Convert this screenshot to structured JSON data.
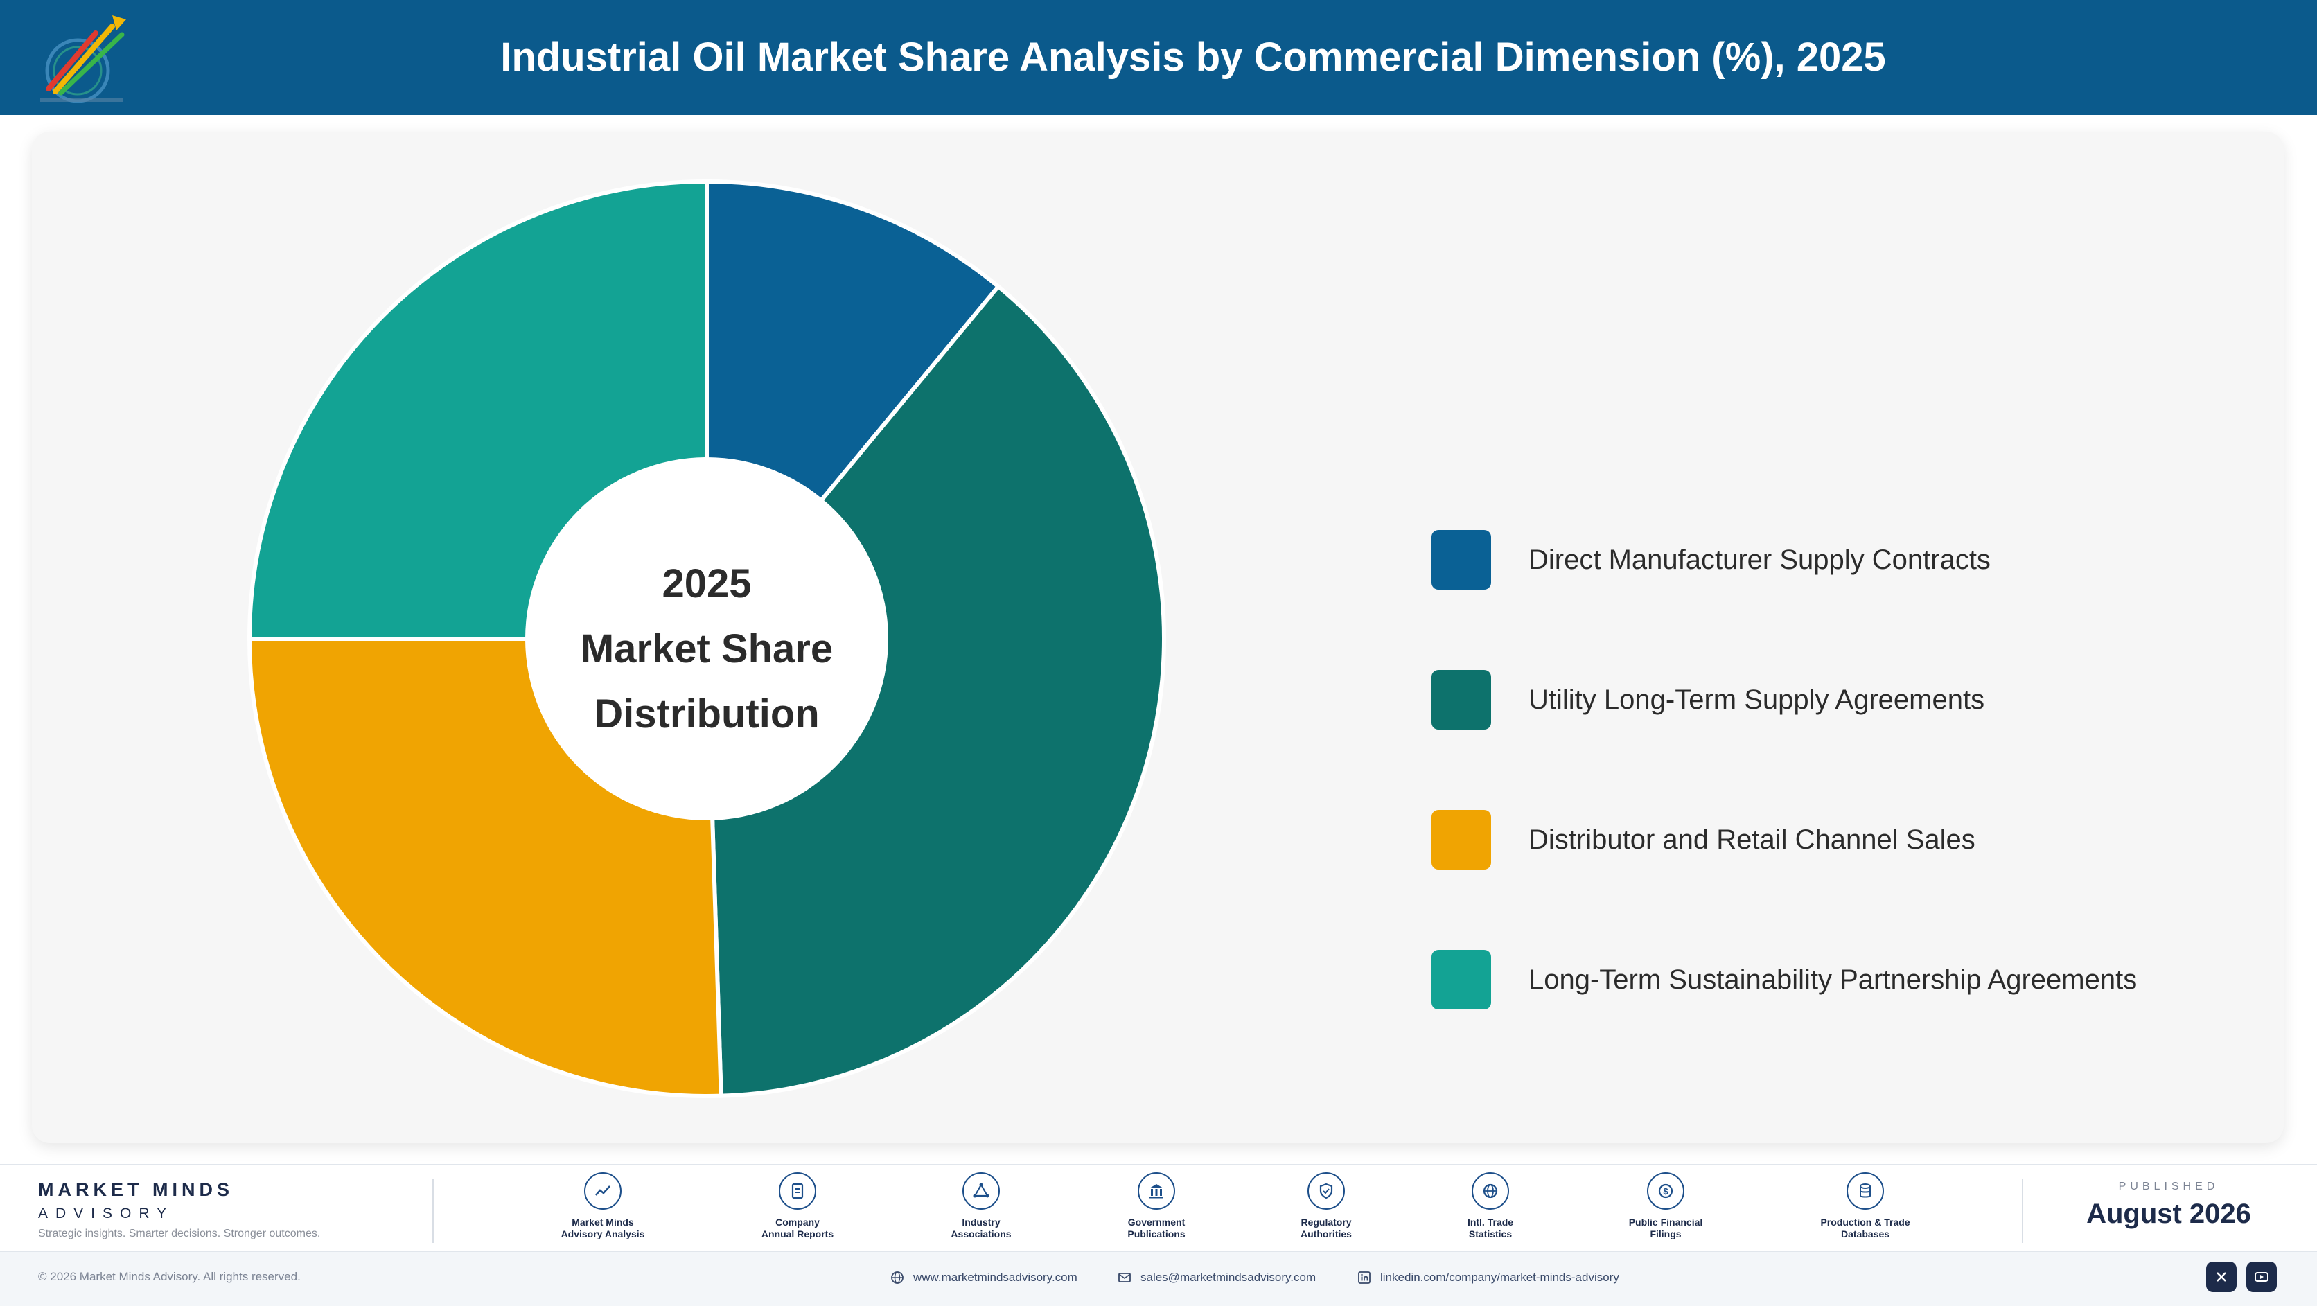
{
  "header": {
    "title": "Industrial Oil Market Share Analysis by Commercial Dimension (%), 2025"
  },
  "chart_data": {
    "type": "pie",
    "style": "donut",
    "center_label": [
      "2025",
      "Market Share",
      "Distribution"
    ],
    "legend_position": "right",
    "categories": [
      "Direct Manufacturer Supply Contracts",
      "Utility Long-Term Supply Agreements",
      "Distributor and Retail Channel Sales",
      "Long-Term Sustainability Partnership Agreements"
    ],
    "values": [
      11,
      38.5,
      25.5,
      25
    ],
    "colors": [
      "#0a6195",
      "#0d726c",
      "#f0a402",
      "#13a394"
    ]
  },
  "footer": {
    "brand_name": "MARKET MINDS",
    "brand_sub": "ADVISORY",
    "tagline": "Strategic insights. Smarter decisions. Stronger outcomes.",
    "sources": [
      {
        "icon": "trend-chart-icon",
        "label": [
          "Market Minds",
          "Advisory Analysis"
        ]
      },
      {
        "icon": "document-icon",
        "label": [
          "Company",
          "Annual Reports"
        ]
      },
      {
        "icon": "network-icon",
        "label": [
          "Industry",
          "Associations"
        ]
      },
      {
        "icon": "government-building-icon",
        "label": [
          "Government",
          "Publications"
        ]
      },
      {
        "icon": "shield-icon",
        "label": [
          "Regulatory",
          "Authorities"
        ]
      },
      {
        "icon": "globe-icon",
        "label": [
          "Intl. Trade",
          "Statistics"
        ]
      },
      {
        "icon": "coin-icon",
        "label": [
          "Public Financial",
          "Filings"
        ]
      },
      {
        "icon": "database-icon",
        "label": [
          "Production & Trade",
          "Databases"
        ]
      }
    ],
    "published_caption": "PUBLISHED",
    "published_date": "August 2026",
    "copyright": "© 2026 Market Minds Advisory. All rights reserved.",
    "website": "www.marketmindsadvisory.com",
    "email": "sales@marketmindsadvisory.com",
    "linkedin": "linkedin.com/company/market-minds-advisory"
  }
}
